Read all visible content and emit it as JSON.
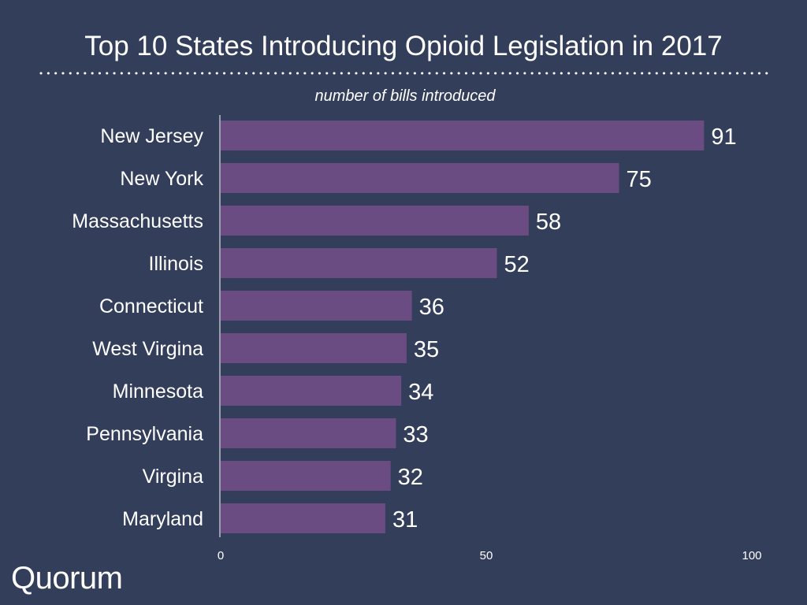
{
  "colors": {
    "background": "#333e5b",
    "bar": "#6a4b82",
    "text": "#ffffff"
  },
  "brand": {
    "name": "Quorum"
  },
  "chart_data": {
    "type": "bar",
    "orientation": "horizontal",
    "title": "Top 10 States Introducing Opioid Legislation in 2017",
    "subtitle": "number of bills introduced",
    "categories": [
      "New Jersey",
      "New York",
      "Massachusetts",
      "Illinois",
      "Connecticut",
      "West Virgina",
      "Minnesota",
      "Pennsylvania",
      "Virgina",
      "Maryland"
    ],
    "values": [
      91,
      75,
      58,
      52,
      36,
      35,
      34,
      33,
      32,
      31
    ],
    "xlim": [
      0,
      100
    ],
    "xticks": [
      0,
      50,
      100
    ],
    "xlabel": "",
    "ylabel": "",
    "grid": false,
    "legend": "none"
  }
}
